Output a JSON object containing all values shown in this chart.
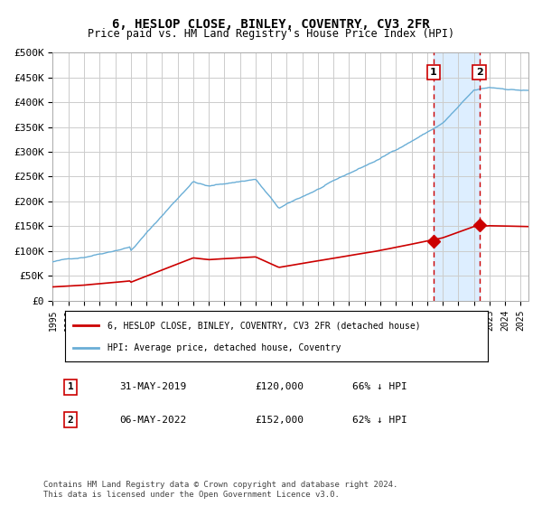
{
  "title": "6, HESLOP CLOSE, BINLEY, COVENTRY, CV3 2FR",
  "subtitle": "Price paid vs. HM Land Registry's House Price Index (HPI)",
  "ylabel_ticks": [
    "£0",
    "£50K",
    "£100K",
    "£150K",
    "£200K",
    "£250K",
    "£300K",
    "£350K",
    "£400K",
    "£450K",
    "£500K"
  ],
  "ylim": [
    0,
    500000
  ],
  "xlim_start": 1995.0,
  "xlim_end": 2025.5,
  "transaction1_date": 2019.42,
  "transaction1_price": 120000,
  "transaction1_label": "31-MAY-2019",
  "transaction1_pct": "66% ↓ HPI",
  "transaction2_date": 2022.35,
  "transaction2_price": 152000,
  "transaction2_label": "06-MAY-2022",
  "transaction2_pct": "62% ↓ HPI",
  "hpi_color": "#6aaed6",
  "property_color": "#cc0000",
  "dashed_color": "#cc0000",
  "shaded_color": "#ddeeff",
  "background_color": "#ffffff",
  "grid_color": "#cccccc",
  "legend_box_color": "#000000",
  "footer": "Contains HM Land Registry data © Crown copyright and database right 2024.\nThis data is licensed under the Open Government Licence v3.0.",
  "legend1": "6, HESLOP CLOSE, BINLEY, COVENTRY, CV3 2FR (detached house)",
  "legend2": "HPI: Average price, detached house, Coventry"
}
